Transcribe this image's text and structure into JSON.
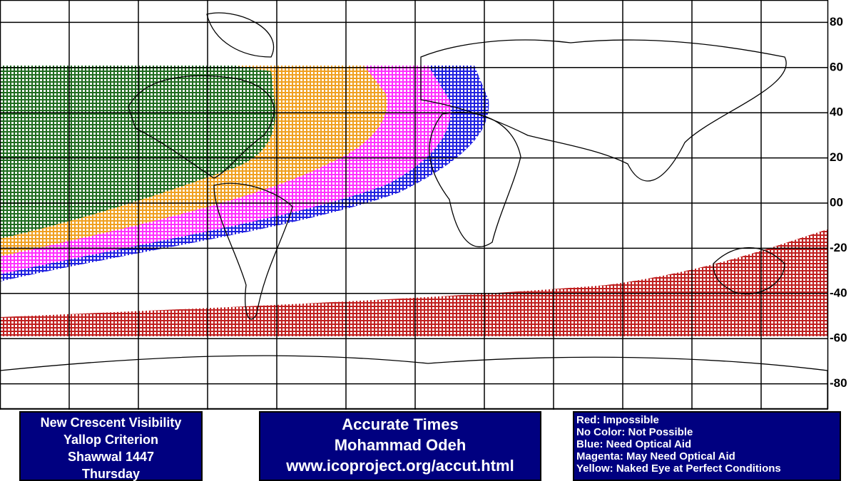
{
  "map": {
    "lat_ticks": [
      80,
      60,
      40,
      20,
      {
        "value": 0,
        "label": "00"
      },
      -20,
      -40,
      -60,
      -80
    ],
    "panels": [
      {
        "lines": [
          "New Crescent Visibility",
          "Yallop Criterion",
          "Shawwal 1447",
          "Thursday"
        ]
      },
      {
        "lines": [
          "Accurate Times",
          "Mohammad Odeh",
          "www.icoproject.org/accut.html"
        ]
      }
    ],
    "legend": [
      "Red: Impossible",
      "No Color: Not Possible",
      "Blue: Need Optical Aid",
      "Magenta: May Need Optical Aid",
      "Yellow: Naked Eye at Perfect Conditions"
    ]
  }
}
